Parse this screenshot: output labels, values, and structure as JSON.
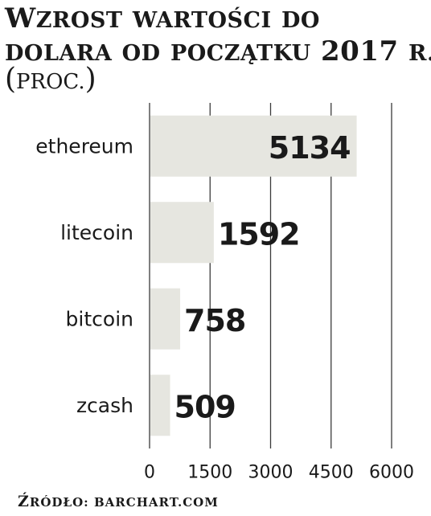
{
  "header": {
    "title_line1": "Wzrost wartości do",
    "title_line2": "dolara od początku 2017 r.",
    "unit": "proc."
  },
  "source": "Źródło: barchart.com",
  "chart_data": {
    "type": "bar",
    "orientation": "horizontal",
    "categories": [
      "ethereum",
      "litecoin",
      "bitcoin",
      "zcash"
    ],
    "values": [
      5134,
      1592,
      758,
      509
    ],
    "xlim": [
      0,
      6000
    ],
    "xticks": [
      "0",
      "1500",
      "3000",
      "4500",
      "6000"
    ],
    "grid": true,
    "colors": {
      "bar": "#e6e6e0",
      "grid": "#3a3a3a",
      "text": "#1a1a1a"
    }
  }
}
